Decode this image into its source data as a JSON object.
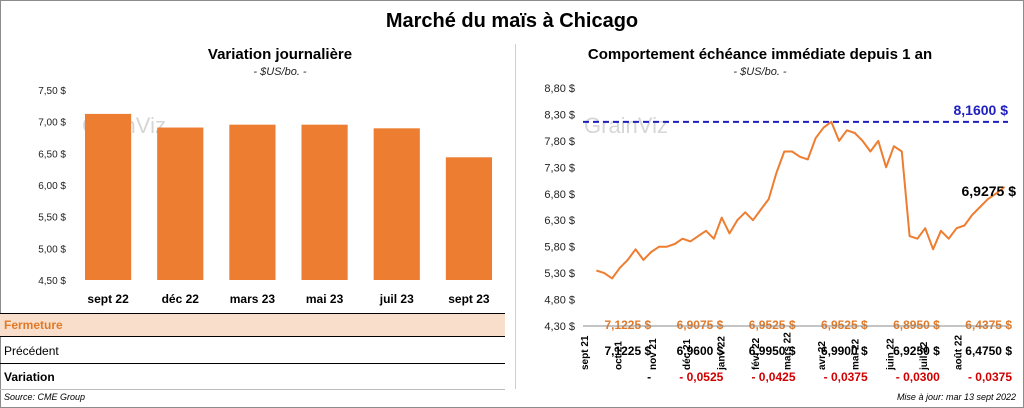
{
  "main_title": "Marché du maïs à Chicago",
  "source": "Source: CME Group",
  "updated": "Mise à jour: mar 13 sept 2022",
  "watermark": "GrainViz",
  "colors": {
    "bar": "#ed7d31",
    "line": "#ed7d31",
    "ref": "#1f1fbf",
    "red": "#d00000"
  },
  "left": {
    "title": "Variation journalière",
    "subtitle": "- $US/bo. -",
    "y_ticks": [
      "7,50 $",
      "7,00 $",
      "6,50 $",
      "6,00 $",
      "5,50 $",
      "5,00 $",
      "4,50 $"
    ],
    "table": {
      "row_labels": {
        "close": "Fermeture",
        "prev": "Précédent",
        "var": "Variation"
      },
      "close": [
        "7,1225  $",
        "6,9075  $",
        "6,9525  $",
        "6,9525  $",
        "6,8950  $",
        "6,4375  $"
      ],
      "prev": [
        "7,1225  $",
        "6,9600  $",
        "6,9950  $",
        "6,9900  $",
        "6,9250  $",
        "6,4750  $"
      ],
      "var": [
        "-",
        "- 0,0525",
        "- 0,0425",
        "- 0,0375",
        "- 0,0300",
        "- 0,0375"
      ]
    }
  },
  "right": {
    "title": "Comportement  échéance immédiate depuis 1 an",
    "subtitle": "- $US/bo. -",
    "y_ticks": [
      "8,80 $",
      "8,30 $",
      "7,80 $",
      "7,30 $",
      "6,80 $",
      "6,30 $",
      "5,80 $",
      "5,30 $",
      "4,80 $",
      "4,30 $"
    ],
    "ref_label": "8,1600 $",
    "last_label": "6,9275 $"
  },
  "chart_data": [
    {
      "type": "bar",
      "title": "Variation journalière",
      "subtitle": "- $US/bo. -",
      "categories": [
        "sept 22",
        "déc 22",
        "mars 23",
        "mai 23",
        "juil 23",
        "sept 23"
      ],
      "values": [
        7.1225,
        6.9075,
        6.9525,
        6.9525,
        6.895,
        6.4375
      ],
      "ylim": [
        4.5,
        7.5
      ],
      "grid": false
    },
    {
      "type": "line",
      "title": "Comportement  échéance immédiate depuis 1 an",
      "subtitle": "- $US/bo. -",
      "x_ticks": [
        "sept 21",
        "oct 21",
        "nov 21",
        "déc 21",
        "janv 22",
        "févr 22",
        "mars 22",
        "avr 22",
        "mai 22",
        "juin 22",
        "juil 22",
        "août 22"
      ],
      "x": [
        "2021-09-13",
        "2021-09-20",
        "2021-09-27",
        "2021-10-04",
        "2021-10-11",
        "2021-10-18",
        "2021-10-25",
        "2021-11-01",
        "2021-11-08",
        "2021-11-15",
        "2021-11-22",
        "2021-11-29",
        "2021-12-06",
        "2021-12-13",
        "2021-12-20",
        "2021-12-27",
        "2022-01-03",
        "2022-01-10",
        "2022-01-17",
        "2022-01-24",
        "2022-01-31",
        "2022-02-07",
        "2022-02-14",
        "2022-02-21",
        "2022-02-28",
        "2022-03-07",
        "2022-03-14",
        "2022-03-21",
        "2022-03-28",
        "2022-04-04",
        "2022-04-11",
        "2022-04-18",
        "2022-04-25",
        "2022-05-02",
        "2022-05-09",
        "2022-05-16",
        "2022-05-23",
        "2022-05-30",
        "2022-06-06",
        "2022-06-13",
        "2022-06-20",
        "2022-06-27",
        "2022-07-04",
        "2022-07-11",
        "2022-07-18",
        "2022-07-25",
        "2022-08-01",
        "2022-08-08",
        "2022-08-15",
        "2022-08-22",
        "2022-08-29",
        "2022-09-05",
        "2022-09-13"
      ],
      "y": [
        5.35,
        5.3,
        5.2,
        5.4,
        5.55,
        5.75,
        5.55,
        5.7,
        5.8,
        5.8,
        5.85,
        5.95,
        5.9,
        6.0,
        6.1,
        5.95,
        6.35,
        6.05,
        6.3,
        6.45,
        6.3,
        6.5,
        6.7,
        7.2,
        7.6,
        7.6,
        7.5,
        7.45,
        7.85,
        8.05,
        8.16,
        7.8,
        8.0,
        7.95,
        7.8,
        7.6,
        7.8,
        7.3,
        7.7,
        7.6,
        6.0,
        5.95,
        6.15,
        5.75,
        6.1,
        5.95,
        6.15,
        6.2,
        6.4,
        6.55,
        6.7,
        6.8,
        6.9275
      ],
      "reference_line": 8.16,
      "last_value": 6.9275,
      "ylim": [
        4.3,
        8.8
      ],
      "grid": false
    }
  ]
}
